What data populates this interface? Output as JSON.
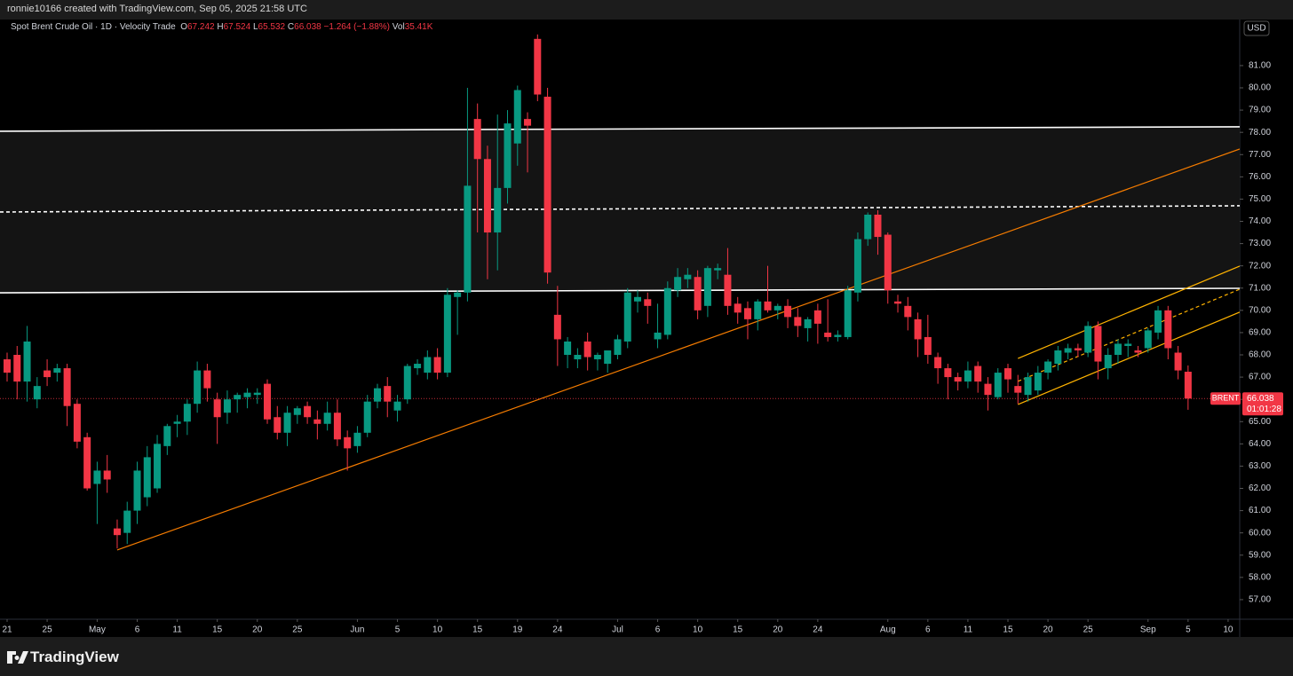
{
  "header": {
    "credit": "ronnie10166 created with TradingView.com, Sep 05, 2025 21:58 UTC",
    "brand": "TradingView"
  },
  "chart_data": {
    "type": "candlestick",
    "title": "Spot Brent Crude Oil · 1D · Velocity Trade",
    "legend": {
      "open_key": "O",
      "high_key": "H",
      "low_key": "L",
      "close_key": "C",
      "change": "−1.264 (−1.88%)",
      "volume_key": "Vol",
      "volume": "35.41K"
    },
    "currency": "USD",
    "symbol_tag": "BRENT",
    "countdown": "01:01:28",
    "up_color": "#089981",
    "down_color": "#f23645",
    "open": [
      67.8,
      68.0,
      66.8,
      66.0,
      67.3,
      67.2,
      67.4,
      65.8,
      64.3,
      62.2,
      62.8,
      60.2,
      60.0,
      61.0,
      61.6,
      62.0,
      63.9,
      64.9,
      65.0,
      65.8,
      67.3,
      66.0,
      65.4,
      66.0,
      66.1,
      66.2,
      66.7,
      65.2,
      64.5,
      65.3,
      65.7,
      65.1,
      64.9,
      65.4,
      64.3,
      63.9,
      64.5,
      65.9,
      66.6,
      65.5,
      66.0,
      67.4,
      67.2,
      67.9,
      67.2,
      70.6,
      70.8,
      78.6,
      76.8,
      73.5,
      75.5,
      77.5,
      78.6,
      82.2,
      79.6,
      69.8,
      68.0,
      67.8,
      68.6,
      67.8,
      67.6,
      68.0,
      68.6,
      70.4,
      70.5,
      68.7,
      68.9,
      70.9,
      71.4,
      71.5,
      70.2,
      71.8,
      71.6,
      70.3,
      70.1,
      69.6,
      70.4,
      70.0,
      70.2,
      69.7,
      69.2,
      70.0,
      69.0,
      68.8,
      68.8,
      70.8,
      73.2,
      74.3,
      73.4,
      70.4,
      70.2,
      69.6,
      68.8,
      67.9,
      67.4,
      67.0,
      66.8,
      67.5,
      66.7,
      66.1,
      67.4,
      66.6,
      66.2,
      66.4,
      67.2,
      67.6,
      68.1,
      68.3,
      68.1,
      69.3,
      67.4,
      68.0,
      68.4,
      68.2,
      68.3,
      69.0,
      70.0,
      68.1,
      67.242
    ],
    "high": [
      68.1,
      68.4,
      69.3,
      67.0,
      67.8,
      67.6,
      67.6,
      66.0,
      64.5,
      63.2,
      63.5,
      60.6,
      61.4,
      63.2,
      63.9,
      64.4,
      64.9,
      65.3,
      66.0,
      67.7,
      67.6,
      66.3,
      66.4,
      66.3,
      66.5,
      66.5,
      66.9,
      65.7,
      65.7,
      65.7,
      65.9,
      65.5,
      65.9,
      66.0,
      64.6,
      64.8,
      66.2,
      66.7,
      67.0,
      66.2,
      67.6,
      67.8,
      68.2,
      68.3,
      71.0,
      70.9,
      80.0,
      79.3,
      77.4,
      78.8,
      79.0,
      80.1,
      78.9,
      82.4,
      80.0,
      71.1,
      68.8,
      68.3,
      69.0,
      68.1,
      68.2,
      68.9,
      71.0,
      70.9,
      70.8,
      70.3,
      71.3,
      71.9,
      71.9,
      71.8,
      72.0,
      72.1,
      72.8,
      70.6,
      70.4,
      70.5,
      72.0,
      70.3,
      70.5,
      70.1,
      69.7,
      70.3,
      70.5,
      69.1,
      71.1,
      73.5,
      74.4,
      74.5,
      73.5,
      70.7,
      70.6,
      69.9,
      69.8,
      68.1,
      67.6,
      67.2,
      67.7,
      67.7,
      67.0,
      67.4,
      67.6,
      67.1,
      67.2,
      67.5,
      67.8,
      68.4,
      68.5,
      68.5,
      69.5,
      69.5,
      68.3,
      68.7,
      68.7,
      68.4,
      69.2,
      70.2,
      70.2,
      68.4,
      67.524
    ],
    "low": [
      66.8,
      66.0,
      65.9,
      65.6,
      66.6,
      66.8,
      64.8,
      63.8,
      61.9,
      60.4,
      61.8,
      59.3,
      59.5,
      60.4,
      61.2,
      61.8,
      63.5,
      64.3,
      64.4,
      65.4,
      65.9,
      64.0,
      64.9,
      65.4,
      65.6,
      65.8,
      64.9,
      64.2,
      63.9,
      64.9,
      64.9,
      64.2,
      64.6,
      63.9,
      62.8,
      63.6,
      64.3,
      65.6,
      65.2,
      65.0,
      65.8,
      67.1,
      66.9,
      66.9,
      67.0,
      68.9,
      70.4,
      73.5,
      71.4,
      71.8,
      74.8,
      76.5,
      76.2,
      79.4,
      71.2,
      67.5,
      67.4,
      67.4,
      67.3,
      67.3,
      67.2,
      67.8,
      68.3,
      69.9,
      69.4,
      68.3,
      68.7,
      70.6,
      71.0,
      69.6,
      69.7,
      71.4,
      69.8,
      69.4,
      68.7,
      69.1,
      69.9,
      69.6,
      69.2,
      68.8,
      68.6,
      68.5,
      68.6,
      68.6,
      68.7,
      70.4,
      72.9,
      72.5,
      70.3,
      69.9,
      69.1,
      67.9,
      67.6,
      66.7,
      66.0,
      66.4,
      66.5,
      66.3,
      65.5,
      66.0,
      66.3,
      65.8,
      65.9,
      66.2,
      66.9,
      67.3,
      67.8,
      67.9,
      67.9,
      66.9,
      66.9,
      67.6,
      67.9,
      67.9,
      68.1,
      68.7,
      67.8,
      66.9,
      65.532
    ],
    "close": [
      67.2,
      66.8,
      68.6,
      66.6,
      67.0,
      67.4,
      65.7,
      64.1,
      62.0,
      62.8,
      62.4,
      59.9,
      61.0,
      62.8,
      63.4,
      64.0,
      64.8,
      65.0,
      65.8,
      67.3,
      66.5,
      65.2,
      66.0,
      66.2,
      66.3,
      66.3,
      65.1,
      64.5,
      65.4,
      65.6,
      65.2,
      64.9,
      65.4,
      64.2,
      63.8,
      64.5,
      65.9,
      66.5,
      65.9,
      65.9,
      67.5,
      67.6,
      67.9,
      67.2,
      70.7,
      70.8,
      75.6,
      76.8,
      73.5,
      75.5,
      78.4,
      79.9,
      78.3,
      79.7,
      71.7,
      68.7,
      68.6,
      68.0,
      67.9,
      68.0,
      68.2,
      68.7,
      70.8,
      70.6,
      70.2,
      69.0,
      71.0,
      71.5,
      71.6,
      70.0,
      71.9,
      71.9,
      70.2,
      69.9,
      69.6,
      70.4,
      70.0,
      70.2,
      69.7,
      69.3,
      69.6,
      69.4,
      68.8,
      68.9,
      70.9,
      73.2,
      74.3,
      73.3,
      70.9,
      70.3,
      69.7,
      68.7,
      68.0,
      67.4,
      67.0,
      66.8,
      67.3,
      66.8,
      66.2,
      67.2,
      66.9,
      66.3,
      67.0,
      67.2,
      67.7,
      68.2,
      68.3,
      68.2,
      69.3,
      67.7,
      68.0,
      68.5,
      68.5,
      68.1,
      69.1,
      70.0,
      68.3,
      67.3,
      66.038
    ],
    "xlim": [
      -0.71,
      123.16
    ],
    "ylim": [
      56.12,
      83.07
    ],
    "xticks": [
      {
        "value": 0,
        "label": "21"
      },
      {
        "value": 4,
        "label": "25"
      },
      {
        "value": 9,
        "label": "May"
      },
      {
        "value": 13,
        "label": "6"
      },
      {
        "value": 17,
        "label": "11"
      },
      {
        "value": 21,
        "label": "15"
      },
      {
        "value": 25,
        "label": "20"
      },
      {
        "value": 29,
        "label": "25"
      },
      {
        "value": 35,
        "label": "Jun"
      },
      {
        "value": 39,
        "label": "5"
      },
      {
        "value": 43,
        "label": "10"
      },
      {
        "value": 47,
        "label": "15"
      },
      {
        "value": 51,
        "label": "19"
      },
      {
        "value": 55,
        "label": "24"
      },
      {
        "value": 61,
        "label": "Jul"
      },
      {
        "value": 65,
        "label": "6"
      },
      {
        "value": 69,
        "label": "10"
      },
      {
        "value": 73,
        "label": "15"
      },
      {
        "value": 77,
        "label": "20"
      },
      {
        "value": 81,
        "label": "24"
      },
      {
        "value": 88,
        "label": "Aug"
      },
      {
        "value": 92,
        "label": "6"
      },
      {
        "value": 96,
        "label": "11"
      },
      {
        "value": 100,
        "label": "15"
      },
      {
        "value": 104,
        "label": "20"
      },
      {
        "value": 108,
        "label": "25"
      },
      {
        "value": 114,
        "label": "Sep"
      },
      {
        "value": 118,
        "label": "5"
      },
      {
        "value": 122,
        "label": "10"
      }
    ],
    "yticks": [
      {
        "value": 57,
        "label": "57.00"
      },
      {
        "value": 58,
        "label": "58.00"
      },
      {
        "value": 59,
        "label": "59.00"
      },
      {
        "value": 60,
        "label": "60.00"
      },
      {
        "value": 61,
        "label": "61.00"
      },
      {
        "value": 62,
        "label": "62.00"
      },
      {
        "value": 63,
        "label": "63.00"
      },
      {
        "value": 64,
        "label": "64.00"
      },
      {
        "value": 65,
        "label": "65.00"
      },
      {
        "value": 66,
        "label": "66.00"
      },
      {
        "value": 67,
        "label": "67.00"
      },
      {
        "value": 68,
        "label": "68.00"
      },
      {
        "value": 69,
        "label": "69.00"
      },
      {
        "value": 70,
        "label": "70.00"
      },
      {
        "value": 71,
        "label": "71.00"
      },
      {
        "value": 72,
        "label": "72.00"
      },
      {
        "value": 73,
        "label": "73.00"
      },
      {
        "value": 74,
        "label": "74.00"
      },
      {
        "value": 75,
        "label": "75.00"
      },
      {
        "value": 76,
        "label": "76.00"
      },
      {
        "value": 77,
        "label": "77.00"
      },
      {
        "value": 78,
        "label": "78.00"
      },
      {
        "value": 79,
        "label": "79.00"
      },
      {
        "value": 80,
        "label": "80.00"
      },
      {
        "value": 81,
        "label": "81.00"
      }
    ],
    "zone": {
      "color": "#141414",
      "top": [
        [
          -0.71,
          78.05
        ],
        [
          123.16,
          78.25
        ]
      ],
      "bottom": [
        [
          -0.71,
          70.79
        ],
        [
          123.16,
          70.99
        ]
      ]
    },
    "drawings": [
      {
        "color": "#ffffff",
        "dash": false,
        "points": [
          [
            -0.71,
            78.05
          ],
          [
            123.16,
            78.25
          ]
        ]
      },
      {
        "color": "#ffffff",
        "dash": false,
        "points": [
          [
            -0.71,
            70.79
          ],
          [
            123.16,
            70.99
          ]
        ]
      },
      {
        "color": "#ffffff",
        "dash": true,
        "points": [
          [
            -0.71,
            74.42
          ],
          [
            123.16,
            74.7
          ]
        ]
      },
      {
        "color": "#f57c00",
        "dash": false,
        "points": [
          [
            11.0,
            59.23
          ],
          [
            123.16,
            77.25
          ]
        ]
      },
      {
        "color": "#ffb300",
        "dash": false,
        "points": [
          [
            101.0,
            67.84
          ],
          [
            123.16,
            71.99
          ]
        ]
      },
      {
        "color": "#ffb300",
        "dash": true,
        "points": [
          [
            101.0,
            66.81
          ],
          [
            123.16,
            70.95
          ]
        ]
      },
      {
        "color": "#ffb300",
        "dash": false,
        "points": [
          [
            101.0,
            65.77
          ],
          [
            123.16,
            69.92
          ]
        ]
      }
    ]
  }
}
